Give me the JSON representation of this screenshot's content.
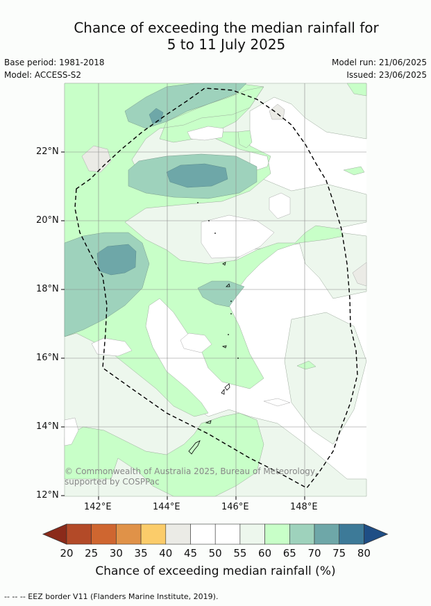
{
  "title": {
    "line1": "Chance of exceeding the median rainfall for",
    "line2": "5 to 11 July 2025"
  },
  "meta": {
    "base_period": "Base period: 1981-2018",
    "model": "Model: ACCESS-S2",
    "model_run": "Model run: 21/06/2025",
    "issued": "Issued: 23/06/2025"
  },
  "map": {
    "lat_labels": [
      "22°N",
      "20°N",
      "18°N",
      "16°N",
      "14°N",
      "12°N"
    ],
    "lon_labels": [
      "142°E",
      "144°E",
      "146°E",
      "148°E"
    ],
    "copyright": "© Commonwealth of Australia 2025, Bureau of Meteorology, supported by COSPPac"
  },
  "colorbar": {
    "ticks": [
      "20",
      "25",
      "30",
      "35",
      "40",
      "45",
      "50",
      "55",
      "60",
      "65",
      "70",
      "75",
      "80"
    ],
    "colors": [
      "#8b2a1a",
      "#b34a28",
      "#cf6630",
      "#e09248",
      "#fbcc6a",
      "#ebebe6",
      "#ffffff",
      "#ffffff",
      "#edf7ed",
      "#c8ffc8",
      "#9ed2bc",
      "#6ea7a8",
      "#3d7a98",
      "#1f4e85"
    ],
    "label": "Chance of exceeding median rainfall (%)"
  },
  "footnote": "--  --  -- EEZ border V11 (Flanders Marine Institute, 2019)."
}
